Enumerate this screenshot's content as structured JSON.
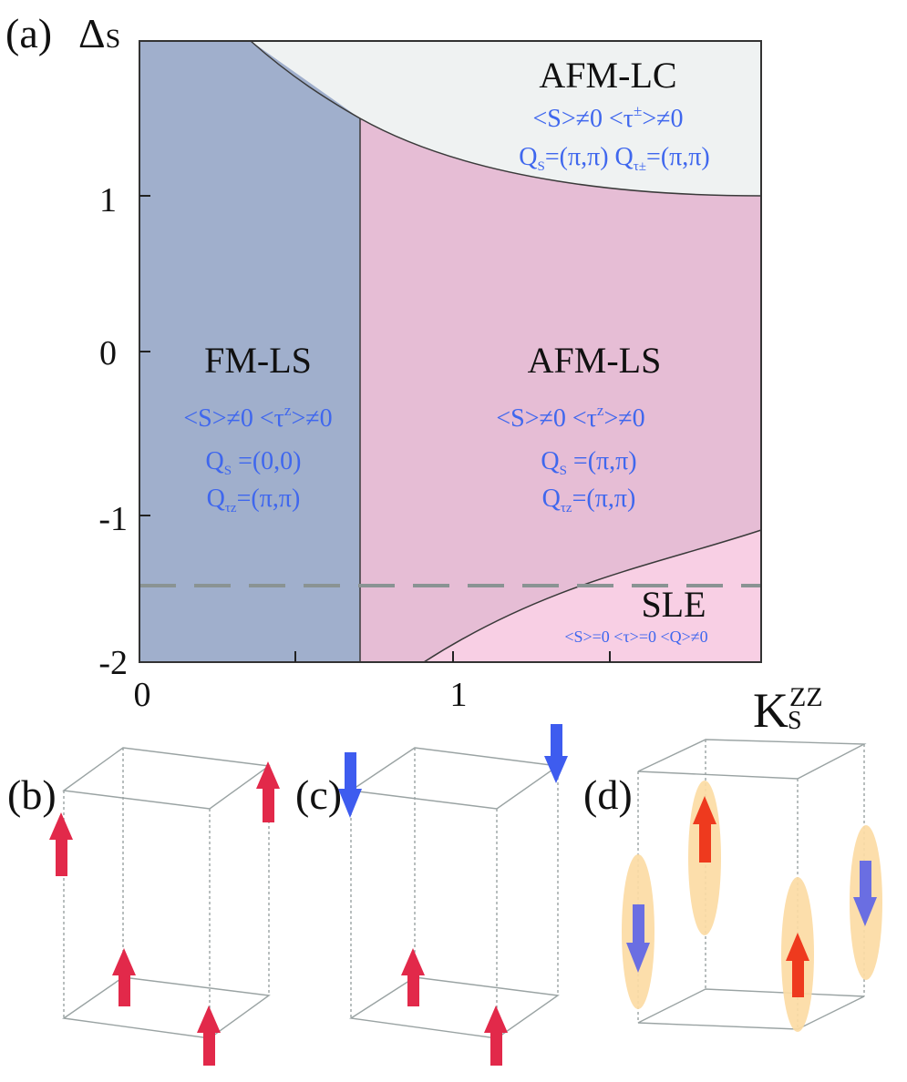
{
  "panel_a": {
    "label": "(a)",
    "y_axis_symbol": "Δ",
    "y_axis_subscript": "S",
    "x_axis_symbol": "K",
    "x_axis_subscript": "S",
    "x_axis_superscript": "ZZ",
    "y_ticks": [
      "1",
      "0",
      "-1",
      "-2"
    ],
    "x_ticks": [
      "0",
      "1"
    ],
    "phases": {
      "afm_lc": {
        "name": "AFM-LC",
        "line1": "<S>≠0  <τ",
        "line1_sup": "±",
        "line1_end": ">≠0",
        "line2a": "Q",
        "line2a_sub": "S",
        "line2b": "=(π,π)  Q",
        "line2b_sub": "τ±",
        "line2c": "=(π,π)"
      },
      "fm_ls": {
        "name": "FM-LS",
        "line1": "<S>≠0  <τ",
        "line1_sup": "z",
        "line1_end": ">≠0",
        "line2": "Q",
        "line2_sub": "S",
        "line2_end": " =(0,0)",
        "line3": "Q",
        "line3_sub": "τz",
        "line3_end": "=(π,π)"
      },
      "afm_ls": {
        "name": "AFM-LS",
        "line1": "<S>≠0  <τ",
        "line1_sup": "z",
        "line1_end": ">≠0",
        "line2": "Q",
        "line2_sub": "S",
        "line2_end": " =(π,π)",
        "line3": "Q",
        "line3_sub": "τz",
        "line3_end": "=(π,π)"
      },
      "sle": {
        "name": "SLE",
        "line1": "<S>=0  <τ>=0  <Q>≠0"
      }
    },
    "colors": {
      "fm_ls": "#a0afcc",
      "afm_ls": "#e6bdd5",
      "afm_lc": "#eff2f2",
      "sle": "#f8cfe4",
      "annotation_blue": "#3f67ee",
      "dashed_line": "#8a9393"
    }
  },
  "panel_b": {
    "label": "(b)",
    "arrow_color": "#e2294a"
  },
  "panel_c": {
    "label": "(c)",
    "up_color": "#e2294a",
    "down_color": "#3e5cef"
  },
  "panel_d": {
    "label": "(d)",
    "up_color": "#ee3a1e",
    "down_color": "#6a6ee2",
    "halo_color": "#fcdca4"
  }
}
